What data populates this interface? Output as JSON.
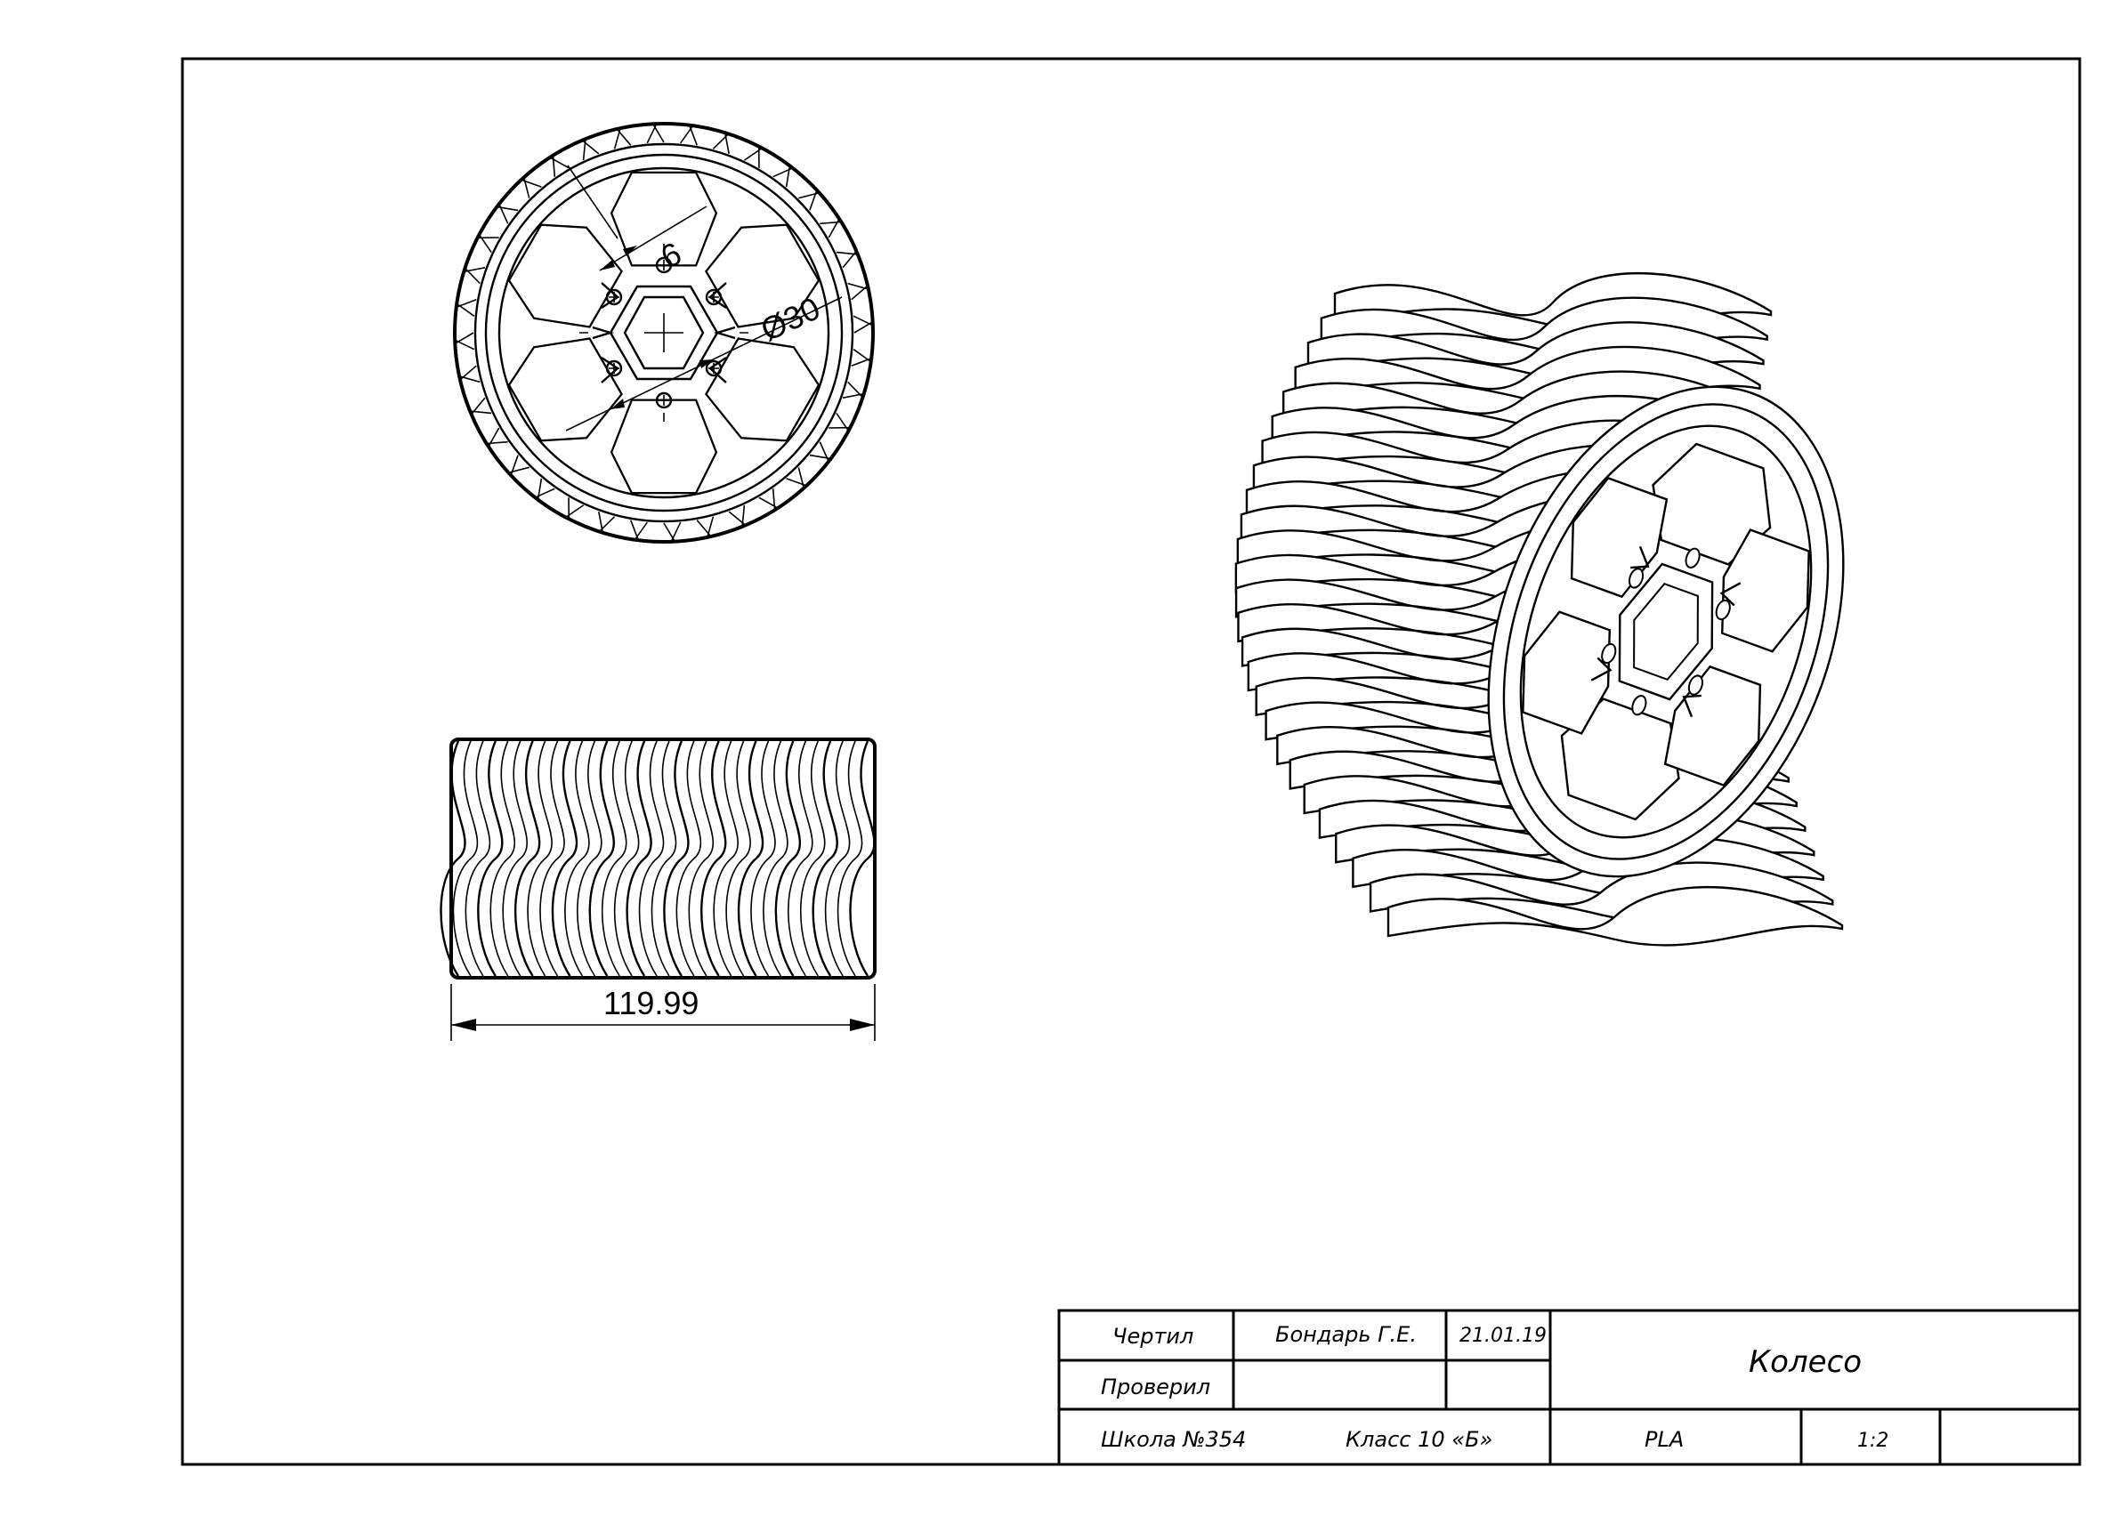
{
  "drawing": {
    "dimensions": {
      "hex_size": "6",
      "diameter": "Ø30",
      "width": "119.99"
    }
  },
  "title_block": {
    "drawn_label": "Чертил",
    "drawn_by": "Бондарь Г.Е.",
    "date": "21.01.19",
    "checked_label": "Проверил",
    "checked_by": "",
    "school": "Школа №354",
    "class": "Класс 10 «Б»",
    "title": "Колесо",
    "material": "PLA",
    "scale": "1:2"
  }
}
